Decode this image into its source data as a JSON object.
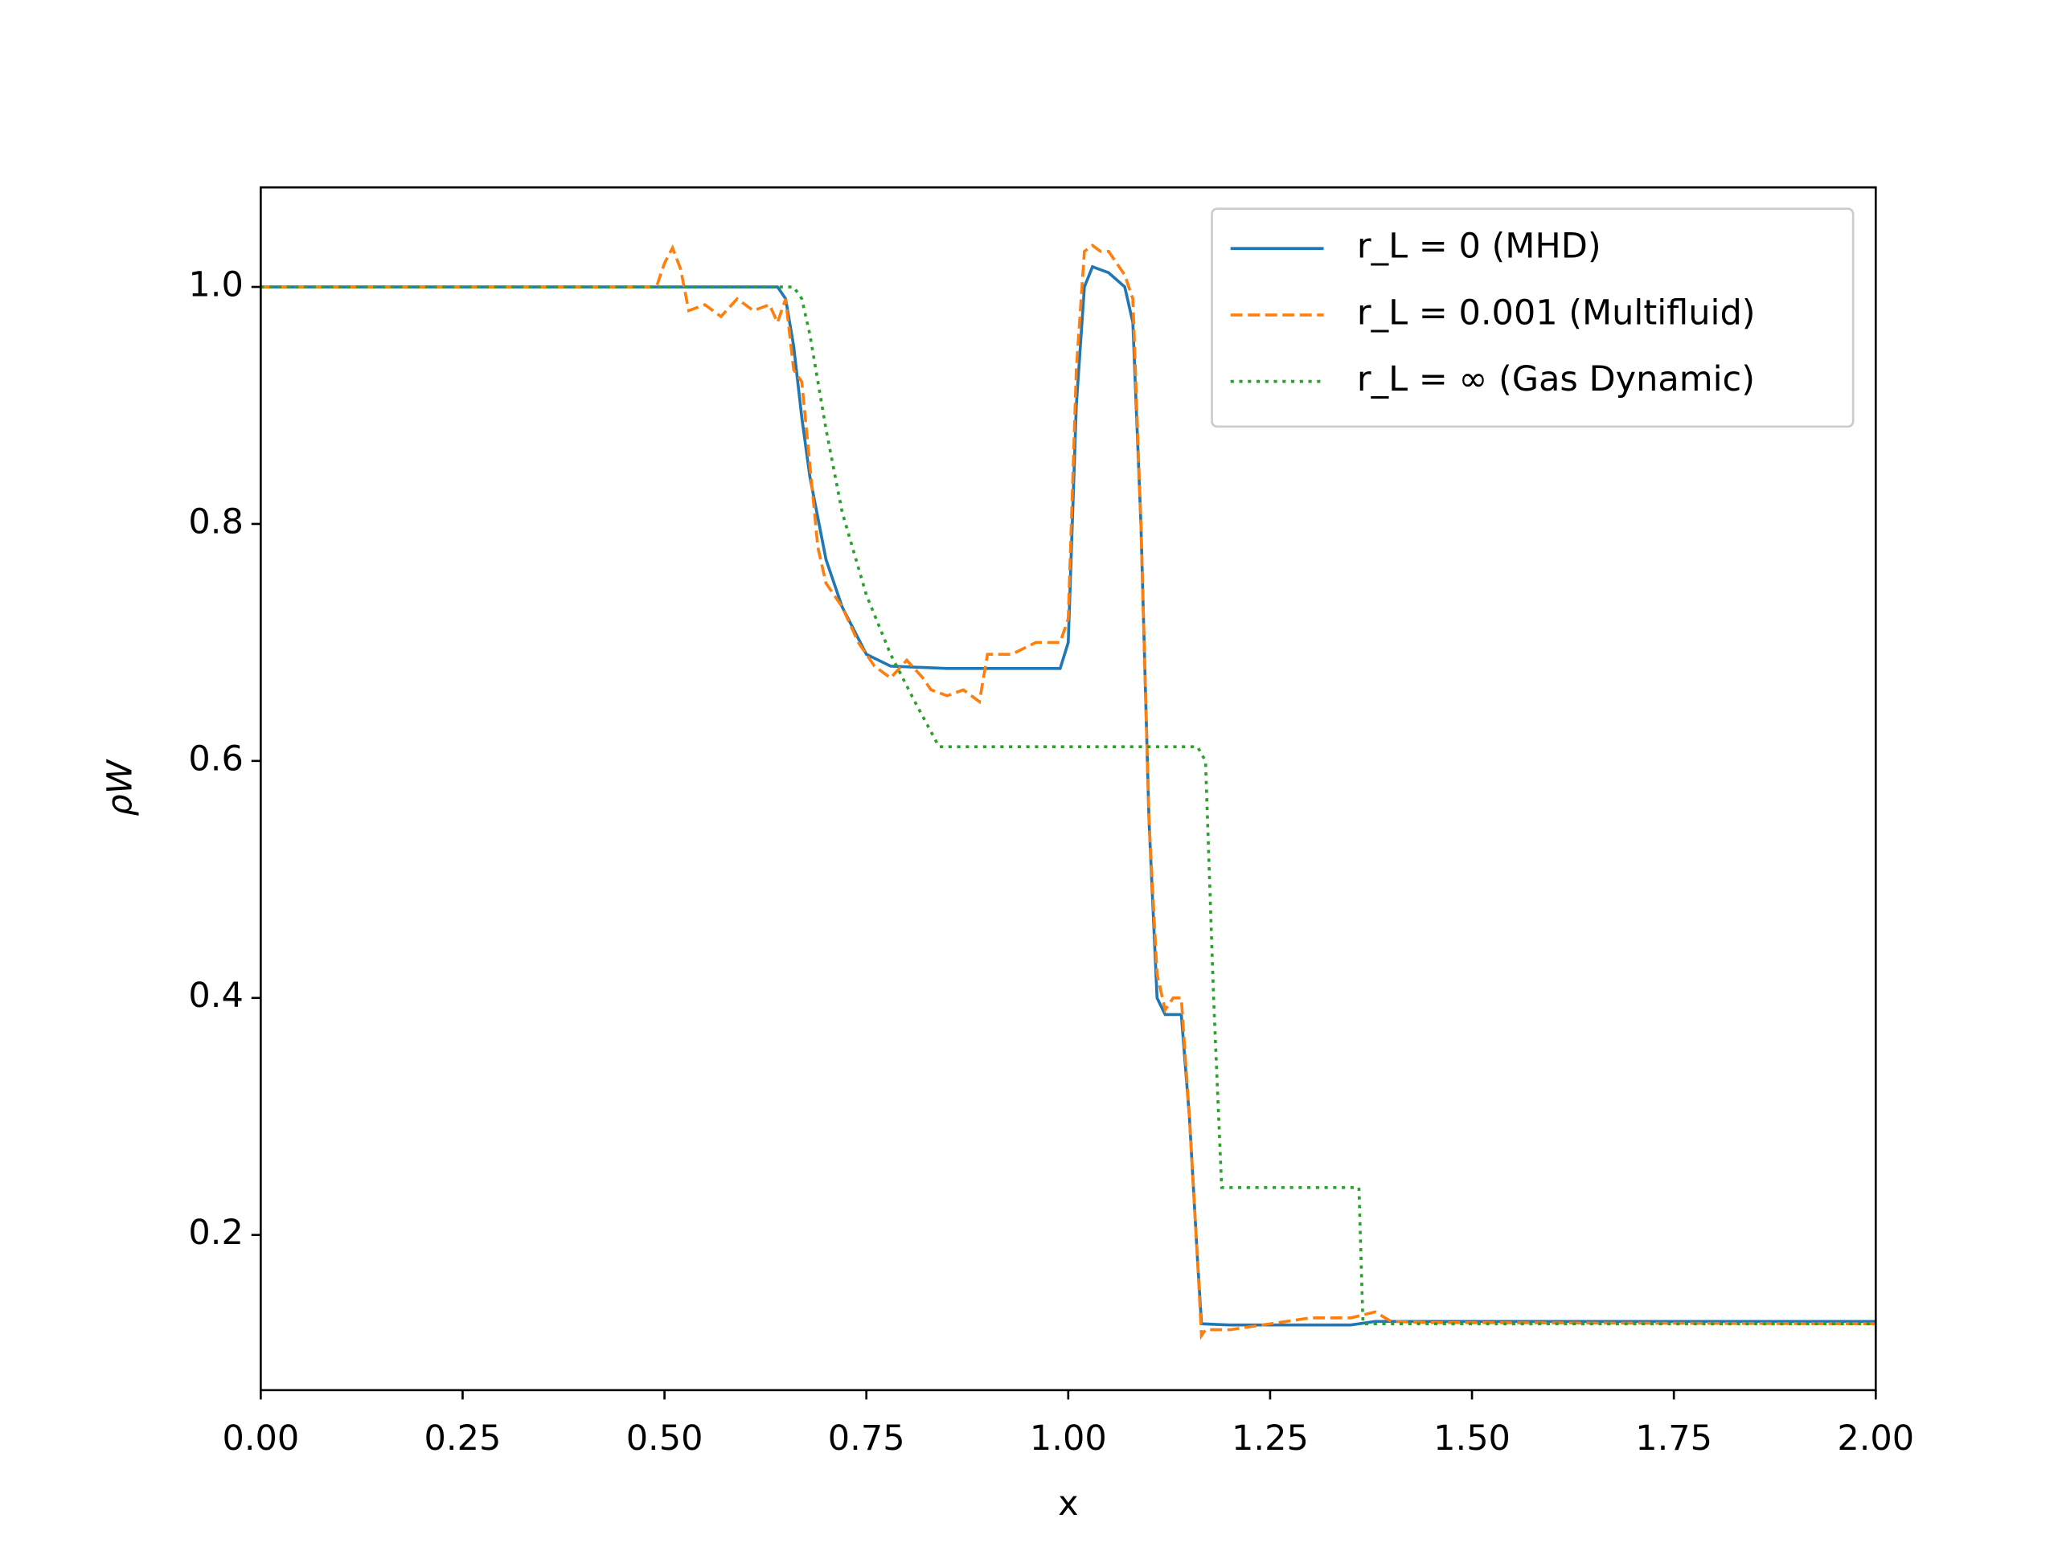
{
  "chart_data": {
    "type": "line",
    "xlabel": "x",
    "ylabel": "ρW",
    "xlim": [
      0,
      2
    ],
    "ylim": [
      0.069,
      1.084
    ],
    "xticks": [
      {
        "value": 0,
        "label": "0.00"
      },
      {
        "value": 0.25,
        "label": "0.25"
      },
      {
        "value": 0.5,
        "label": "0.50"
      },
      {
        "value": 0.75,
        "label": "0.75"
      },
      {
        "value": 1,
        "label": "1.00"
      },
      {
        "value": 1.25,
        "label": "1.25"
      },
      {
        "value": 1.5,
        "label": "1.50"
      },
      {
        "value": 1.75,
        "label": "1.75"
      },
      {
        "value": 2,
        "label": "2.00"
      }
    ],
    "yticks": [
      0.2,
      0.4,
      0.6,
      0.8,
      {
        "value": 1,
        "label": "1.0"
      }
    ],
    "legend": "upper right",
    "series": [
      {
        "name": "r_L = 0 (MHD)",
        "color": "#1f77b4",
        "linestyle": "solid",
        "x": [
          0,
          0.64,
          0.65,
          0.66,
          0.67,
          0.68,
          0.7,
          0.72,
          0.75,
          0.78,
          0.85,
          0.99,
          1.0,
          1.01,
          1.02,
          1.03,
          1.05,
          1.07,
          1.08,
          1.09,
          1.1,
          1.11,
          1.12,
          1.14,
          1.15,
          1.16,
          1.165,
          1.2,
          1.35,
          1.38,
          2.0
        ],
        "values": [
          1.0,
          1.0,
          0.99,
          0.95,
          0.89,
          0.84,
          0.77,
          0.73,
          0.69,
          0.68,
          0.678,
          0.678,
          0.7,
          0.9,
          1.0,
          1.017,
          1.012,
          1.0,
          0.97,
          0.8,
          0.55,
          0.4,
          0.386,
          0.386,
          0.3,
          0.18,
          0.125,
          0.124,
          0.124,
          0.127,
          0.127
        ]
      },
      {
        "name": "r_L = 0.001 (Multifluid)",
        "color": "#ff7f0e",
        "linestyle": "dashed",
        "x": [
          0,
          0.49,
          0.5,
          0.51,
          0.52,
          0.53,
          0.55,
          0.57,
          0.59,
          0.61,
          0.63,
          0.64,
          0.65,
          0.66,
          0.67,
          0.68,
          0.69,
          0.7,
          0.71,
          0.72,
          0.74,
          0.76,
          0.78,
          0.8,
          0.82,
          0.83,
          0.85,
          0.87,
          0.89,
          0.9,
          0.93,
          0.96,
          0.99,
          1.0,
          1.01,
          1.02,
          1.03,
          1.04,
          1.05,
          1.06,
          1.07,
          1.08,
          1.09,
          1.1,
          1.11,
          1.12,
          1.13,
          1.14,
          1.15,
          1.16,
          1.165,
          1.17,
          1.2,
          1.25,
          1.3,
          1.35,
          1.38,
          1.4,
          1.45,
          2.0
        ],
        "values": [
          1.0,
          1.0,
          1.02,
          1.033,
          1.015,
          0.98,
          0.985,
          0.975,
          0.99,
          0.98,
          0.985,
          0.97,
          0.99,
          0.93,
          0.92,
          0.85,
          0.78,
          0.75,
          0.74,
          0.73,
          0.7,
          0.68,
          0.67,
          0.685,
          0.67,
          0.66,
          0.655,
          0.66,
          0.65,
          0.69,
          0.69,
          0.7,
          0.7,
          0.72,
          0.93,
          1.03,
          1.035,
          1.03,
          1.03,
          1.02,
          1.01,
          0.99,
          0.8,
          0.55,
          0.42,
          0.39,
          0.4,
          0.4,
          0.3,
          0.18,
          0.115,
          0.12,
          0.12,
          0.125,
          0.13,
          0.13,
          0.135,
          0.127,
          0.126,
          0.125
        ]
      },
      {
        "name": "r_L = ∞ (Gas Dynamic)",
        "color": "#2ca02c",
        "linestyle": "dotted",
        "x": [
          0,
          0.66,
          0.67,
          0.68,
          0.7,
          0.72,
          0.75,
          0.78,
          0.81,
          0.84,
          1.16,
          1.17,
          1.18,
          1.19,
          1.36,
          1.365,
          2.0
        ],
        "values": [
          1.0,
          1.0,
          0.99,
          0.96,
          0.88,
          0.81,
          0.74,
          0.69,
          0.65,
          0.612,
          0.612,
          0.6,
          0.4,
          0.24,
          0.24,
          0.125,
          0.125
        ]
      }
    ]
  }
}
